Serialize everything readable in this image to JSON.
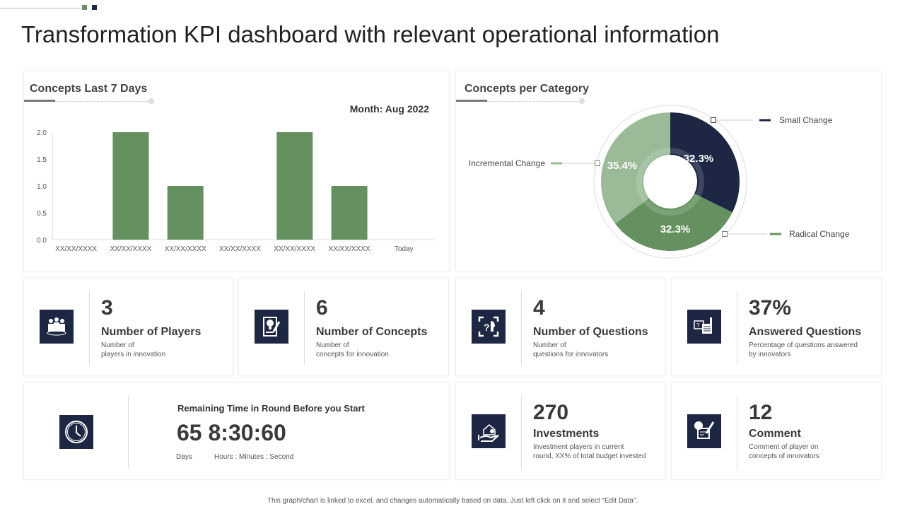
{
  "header": {
    "title": "Transformation KPI dashboard with relevant operational information",
    "accent_colors": [
      "#64915f",
      "#1d2744"
    ]
  },
  "bar_card": {
    "title": "Concepts Last 7 Days",
    "month_label": "Month: Aug 2022"
  },
  "pie_card": {
    "title": "Concepts per Category"
  },
  "chart_data": [
    {
      "type": "bar",
      "title": "Concepts Last 7 Days",
      "categories": [
        "XX/XX/XXXX",
        "XX/XX/XXXX",
        "XX/XX/XXXX",
        "XX/XX/XXXX",
        "XX/XX/XXXX",
        "XX/XX/XXXX",
        "Today"
      ],
      "values": [
        0,
        2,
        1,
        0,
        2,
        1,
        0
      ],
      "ylim": [
        0,
        2
      ],
      "yticks": [
        "0.0",
        "0.5",
        "1.0",
        "1.5",
        "2.0"
      ],
      "grid": false,
      "color": "#64915f"
    },
    {
      "type": "pie",
      "title": "Concepts per Category",
      "donut": true,
      "slices": [
        {
          "name": "Small Change",
          "value": 32.3,
          "label": "32.3%",
          "color": "#1d2744"
        },
        {
          "name": "Radical Change",
          "value": 32.3,
          "label": "32.3%",
          "color": "#64915f"
        },
        {
          "name": "Incremental Change",
          "value": 35.4,
          "label": "35.4%",
          "color": "#9bbb98"
        }
      ]
    }
  ],
  "kpis": [
    {
      "value": "3",
      "label": "Number of Players",
      "desc1": "Number of",
      "desc2": "players in innovation",
      "icon": "team-icon"
    },
    {
      "value": "6",
      "label": "Number of Concepts",
      "desc1": "Number of",
      "desc2": "concepts for innovation",
      "icon": "idea-document-icon"
    },
    {
      "value": "4",
      "label": "Number of  Questions",
      "desc1": "Number  of",
      "desc2": "questions for innovators",
      "icon": "question-scan-icon"
    },
    {
      "value": "37%",
      "label": "Answered Questions",
      "desc1": "Percentage of questions answered",
      "desc2": "by innovators",
      "icon": "chat-document-icon"
    },
    {
      "value": "270",
      "label": "Investments",
      "desc1": "Investment players in current",
      "desc2": "round, XX% of total budget invested",
      "icon": "hand-house-money-icon"
    },
    {
      "value": "12",
      "label": "Comment",
      "desc1": "Comment  of player on",
      "desc2": "concepts of innovators",
      "icon": "comment-edit-icon"
    }
  ],
  "timer": {
    "title": "Remaining Time in Round Before you Start",
    "value": "65 8:30:60",
    "days_label": "Days",
    "hms_label": "Hours : Minutes : Second",
    "icon": "clock-icon"
  },
  "footer": {
    "note": "This graph/chart is linked to excel, and changes automatically based on data. Just left click on it and select “Edit Data”."
  }
}
